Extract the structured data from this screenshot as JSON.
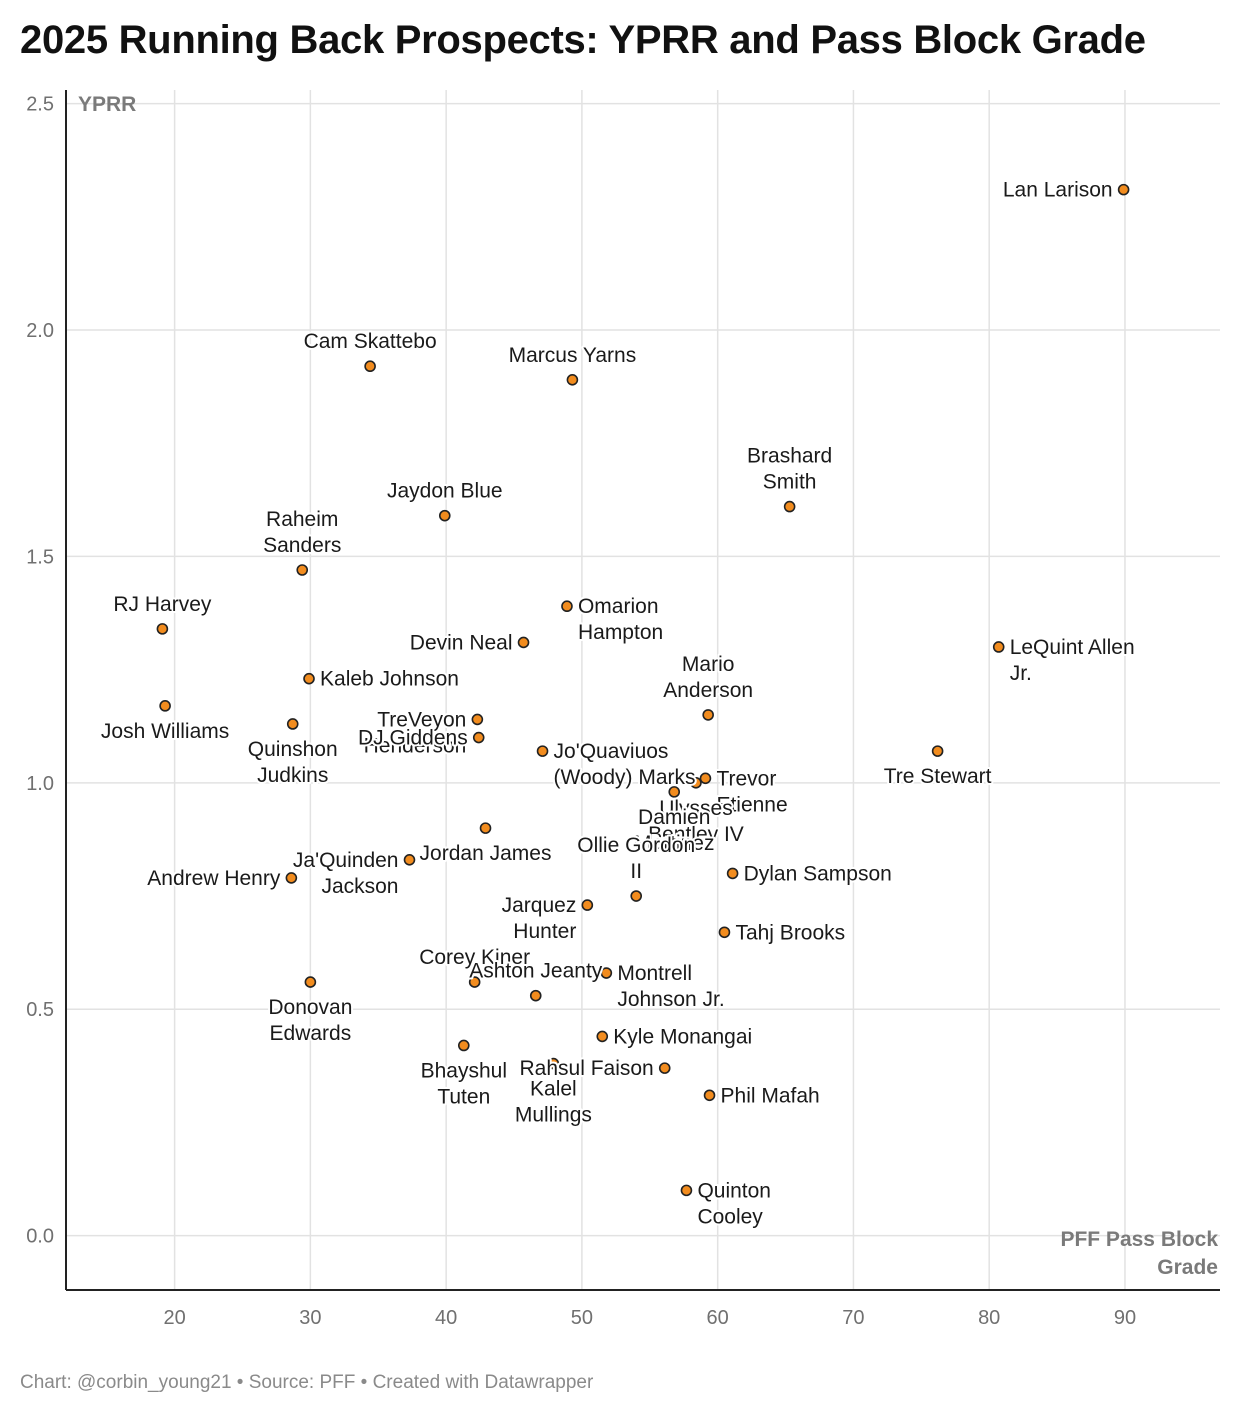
{
  "header": {
    "title": "2025 Running Back Prospects: YPRR and Pass Block Grade"
  },
  "footer": {
    "text": "Chart: @corbin_young21 • Source: PFF • Created with Datawrapper"
  },
  "colors": {
    "marker_fill": "#f28c1e",
    "marker_stroke": "#222222",
    "grid": "#e2e2e2"
  },
  "chart_data": {
    "type": "scatter",
    "title": "2025 Running Back Prospects: YPRR and Pass Block Grade",
    "xlabel": "PFF Pass Block Grade",
    "ylabel": "YPRR",
    "xlim": [
      12,
      97
    ],
    "ylim": [
      -0.12,
      2.53
    ],
    "xticks": [
      20,
      30,
      40,
      50,
      60,
      70,
      80,
      90
    ],
    "yticks": [
      0.0,
      0.5,
      1.0,
      1.5,
      2.0,
      2.5
    ],
    "ytick_labels": [
      "0.0",
      "0.5",
      "1.0",
      "1.5",
      "2.0",
      "2.5"
    ],
    "grid": true,
    "points": [
      {
        "name": "Lan Larison",
        "x": 89.9,
        "y": 2.31,
        "pos": "left"
      },
      {
        "name": "Cam Skattebo",
        "x": 34.4,
        "y": 1.92,
        "pos": "above"
      },
      {
        "name": "Marcus Yarns",
        "x": 49.3,
        "y": 1.89,
        "pos": "above"
      },
      {
        "name": "Brashard Smith",
        "x": 65.3,
        "y": 1.61,
        "pos": "above"
      },
      {
        "name": "Jaydon Blue",
        "x": 39.9,
        "y": 1.59,
        "pos": "above"
      },
      {
        "name": "Raheim Sanders",
        "x": 29.4,
        "y": 1.47,
        "pos": "above"
      },
      {
        "name": "Omarion Hampton",
        "x": 48.9,
        "y": 1.39,
        "pos": "right"
      },
      {
        "name": "RJ Harvey",
        "x": 19.1,
        "y": 1.34,
        "pos": "above"
      },
      {
        "name": "Devin Neal",
        "x": 45.7,
        "y": 1.31,
        "pos": "left"
      },
      {
        "name": "LeQuint Allen Jr.",
        "x": 80.7,
        "y": 1.3,
        "pos": "right"
      },
      {
        "name": "Kaleb Johnson",
        "x": 29.9,
        "y": 1.23,
        "pos": "right"
      },
      {
        "name": "Josh Williams",
        "x": 19.3,
        "y": 1.17,
        "pos": "below"
      },
      {
        "name": "Mario Anderson",
        "x": 59.3,
        "y": 1.15,
        "pos": "above"
      },
      {
        "name": "TreVeyon Henderson",
        "x": 42.3,
        "y": 1.14,
        "pos": "left"
      },
      {
        "name": "Quinshon Judkins",
        "x": 28.7,
        "y": 1.13,
        "pos": "below"
      },
      {
        "name": "DJ Giddens",
        "x": 42.4,
        "y": 1.1,
        "pos": "left"
      },
      {
        "name": "Jo'Quaviuos (Woody) Marks",
        "x": 47.1,
        "y": 1.07,
        "pos": "right"
      },
      {
        "name": "Tre Stewart",
        "x": 76.2,
        "y": 1.07,
        "pos": "below"
      },
      {
        "name": "Trevor Etienne",
        "x": 59.1,
        "y": 1.01,
        "pos": "right"
      },
      {
        "name": "Ulysses Bentley IV",
        "x": 58.4,
        "y": 1.0,
        "pos": "below"
      },
      {
        "name": "Damien Martinez",
        "x": 56.8,
        "y": 0.98,
        "pos": "below"
      },
      {
        "name": "Jordan James",
        "x": 42.9,
        "y": 0.9,
        "pos": "below"
      },
      {
        "name": "Ja'Quinden Jackson",
        "x": 37.3,
        "y": 0.83,
        "pos": "left"
      },
      {
        "name": "Dylan Sampson",
        "x": 61.1,
        "y": 0.8,
        "pos": "right"
      },
      {
        "name": "Andrew Henry",
        "x": 28.6,
        "y": 0.79,
        "pos": "left"
      },
      {
        "name": "Ollie Gordon II",
        "x": 54.0,
        "y": 0.75,
        "pos": "above"
      },
      {
        "name": "Jarquez Hunter",
        "x": 50.4,
        "y": 0.73,
        "pos": "left"
      },
      {
        "name": "Tahj Brooks",
        "x": 60.5,
        "y": 0.67,
        "pos": "right"
      },
      {
        "name": "Montrell Johnson Jr.",
        "x": 51.8,
        "y": 0.58,
        "pos": "right"
      },
      {
        "name": "Corey Kiner",
        "x": 42.1,
        "y": 0.56,
        "pos": "above"
      },
      {
        "name": "Donovan Edwards",
        "x": 30.0,
        "y": 0.56,
        "pos": "below"
      },
      {
        "name": "Ashton Jeanty",
        "x": 46.6,
        "y": 0.53,
        "pos": "above"
      },
      {
        "name": "Kyle Monangai",
        "x": 51.5,
        "y": 0.44,
        "pos": "right"
      },
      {
        "name": "Bhayshul Tuten",
        "x": 41.3,
        "y": 0.42,
        "pos": "below"
      },
      {
        "name": "Kalel Mullings",
        "x": 47.9,
        "y": 0.38,
        "pos": "below"
      },
      {
        "name": "Rahsul Faison",
        "x": 56.1,
        "y": 0.37,
        "pos": "left"
      },
      {
        "name": "Phil Mafah",
        "x": 59.4,
        "y": 0.31,
        "pos": "right"
      },
      {
        "name": "Quinton Cooley",
        "x": 57.7,
        "y": 0.1,
        "pos": "right"
      }
    ]
  }
}
